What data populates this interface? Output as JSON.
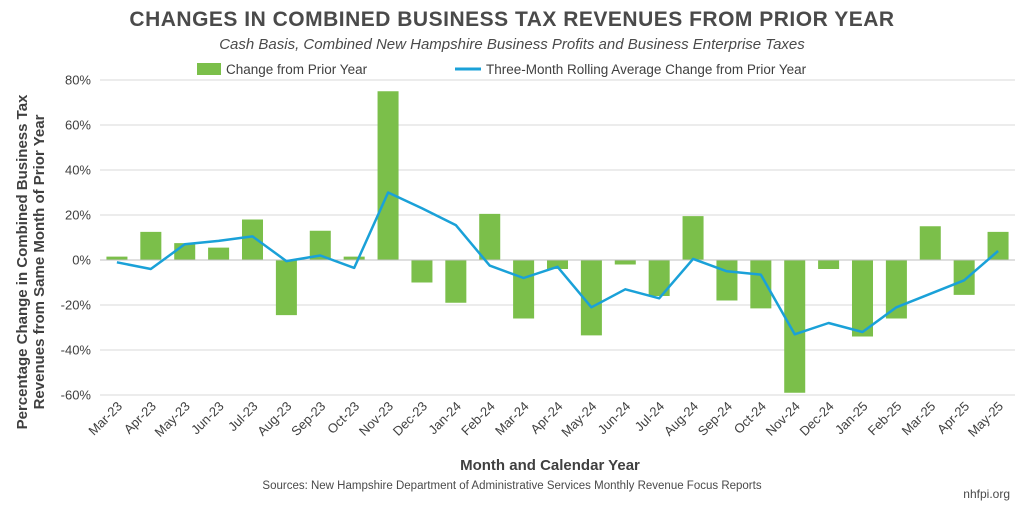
{
  "title": "CHANGES IN COMBINED BUSINESS TAX REVENUES FROM PRIOR YEAR",
  "subtitle": "Cash Basis, Combined New Hampshire Business Profits and Business Enterprise Taxes",
  "source": "Sources: New Hampshire Department of Administrative Services Monthly Revenue Focus Reports",
  "credit": "nhfpi.org",
  "colors": {
    "bar": "#7bbf4a",
    "line": "#1aa1d8",
    "grid": "#d9d9d9",
    "text": "#404040"
  },
  "chart_data": {
    "type": "bar",
    "title": "CHANGES IN COMBINED BUSINESS TAX REVENUES FROM PRIOR YEAR",
    "subtitle": "Cash Basis, Combined New Hampshire Business Profits and Business Enterprise Taxes",
    "xlabel": "Month and Calendar Year",
    "ylabel_lines": [
      "Percentage Change in Combined Business Tax",
      "Revenues from Same Month of Prior Year"
    ],
    "ylim": [
      -60,
      80
    ],
    "yticks": [
      -60,
      -40,
      -20,
      0,
      20,
      40,
      60,
      80
    ],
    "ytick_labels": [
      "-60%",
      "-40%",
      "-20%",
      "0%",
      "20%",
      "40%",
      "60%",
      "80%"
    ],
    "grid": true,
    "legend_position": "top",
    "categories": [
      "Mar-23",
      "Apr-23",
      "May-23",
      "Jun-23",
      "Jul-23",
      "Aug-23",
      "Sep-23",
      "Oct-23",
      "Nov-23",
      "Dec-23",
      "Jan-24",
      "Feb-24",
      "Mar-24",
      "Apr-24",
      "May-24",
      "Jun-24",
      "Jul-24",
      "Aug-24",
      "Sep-24",
      "Oct-24",
      "Nov-24",
      "Dec-24",
      "Jan-25",
      "Feb-25",
      "Mar-25",
      "Apr-25",
      "May-25"
    ],
    "series": [
      {
        "name": "Change from Prior Year",
        "kind": "bar",
        "values": [
          1.5,
          12.5,
          7.5,
          5.5,
          18,
          -24.5,
          13,
          1.5,
          75,
          -10,
          -19,
          20.5,
          -26,
          -4,
          -33.5,
          -2,
          -16,
          19.5,
          -18,
          -21.5,
          -59,
          -4,
          -34,
          -26,
          15,
          -15.5,
          12.5
        ]
      },
      {
        "name": "Three-Month Rolling Average Change from Prior Year",
        "kind": "line",
        "values": [
          -1,
          -4,
          7,
          8.5,
          10.5,
          -0.5,
          2,
          -3.5,
          30,
          23,
          15.5,
          -2.5,
          -8,
          -3,
          -21,
          -13,
          -17,
          0.5,
          -5,
          -6.5,
          -33,
          -28,
          -32,
          -21,
          -15,
          -9,
          4
        ]
      }
    ]
  }
}
